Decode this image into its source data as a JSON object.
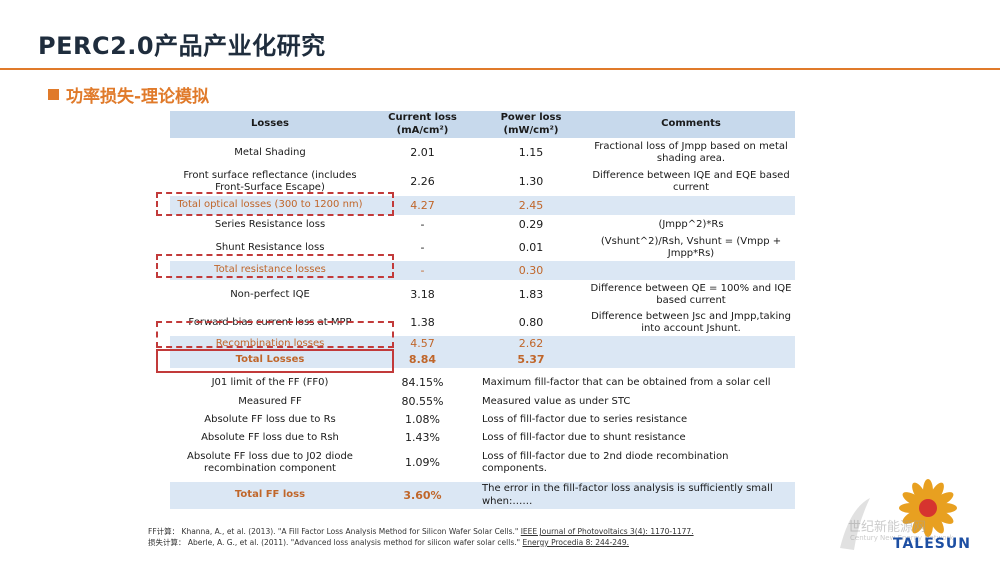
{
  "title": "PERC2.0产品产业化研究",
  "section": {
    "heading": "功率损失-理论模拟"
  },
  "loss_table": {
    "headers": {
      "losses": "Losses",
      "current": "Current loss (mA/cm²)",
      "power": "Power loss (mW/cm²)",
      "comments": "Comments"
    },
    "rows": [
      {
        "name": "Metal Shading",
        "current": "2.01",
        "power": "1.15",
        "comment": "Fractional loss of Jmpp based on metal shading area."
      },
      {
        "name": "Front surface reflectance (includes Front-Surface Escape)",
        "current": "2.26",
        "power": "1.30",
        "comment": "Difference between IQE and EQE based current"
      },
      {
        "name": "Total optical losses (300 to 1200 nm)",
        "current": "4.27",
        "power": "2.45",
        "comment": ""
      },
      {
        "name": "Series Resistance loss",
        "current": "-",
        "power": "0.29",
        "comment": "(Jmpp^2)*Rs"
      },
      {
        "name": "Shunt Resistance loss",
        "current": "-",
        "power": "0.01",
        "comment": "(Vshunt^2)/Rsh, Vshunt = (Vmpp + Jmpp*Rs)"
      },
      {
        "name": "Total resistance losses",
        "current": "-",
        "power": "0.30",
        "comment": ""
      },
      {
        "name": "Non-perfect IQE",
        "current": "3.18",
        "power": "1.83",
        "comment": "Difference between QE = 100% and IQE based current"
      },
      {
        "name": "Forward-bias current loss at MPP",
        "current": "1.38",
        "power": "0.80",
        "comment": "Difference between Jsc and Jmpp,taking into account Jshunt."
      },
      {
        "name": "Recombination losses",
        "current": "4.57",
        "power": "2.62",
        "comment": ""
      },
      {
        "name": "Total Losses",
        "current": "8.84",
        "power": "5.37",
        "comment": ""
      }
    ]
  },
  "ff_table": {
    "rows": [
      {
        "name": "J01 limit of the FF (FF0)",
        "value": "84.15%",
        "comment": "Maximum fill-factor that can be obtained from a solar cell"
      },
      {
        "name": "Measured FF",
        "value": "80.55%",
        "comment": "Measured value as under STC"
      },
      {
        "name": "Absolute FF loss due to Rs",
        "value": "1.08%",
        "comment": "Loss of fill-factor due to series resistance"
      },
      {
        "name": "Absolute FF loss due to Rsh",
        "value": "1.43%",
        "comment": "Loss of fill-factor due to shunt resistance"
      },
      {
        "name": "Absolute FF loss due to J02 diode recombination component",
        "value": "1.09%",
        "comment": "Loss of fill-factor due to 2nd diode recombination components."
      },
      {
        "name": "Total FF loss",
        "value": "3.60%",
        "comment": "The error in the fill-factor loss analysis is sufficiently small when:……"
      }
    ]
  },
  "references": {
    "ff_prefix": "FF计算：",
    "ff_text": "Khanna, A., et al. (2013). \"A Fill Factor Loss Analysis Method for Silicon Wafer Solar Cells.\"",
    "ff_journal": "IEEE Journal of Photovoltaics 3(4): 1170-1177.",
    "loss_prefix": "损失计算：",
    "loss_text": "Aberle, A. G., et al. (2011). \"Advanced loss analysis method for silicon wafer solar cells.\"",
    "loss_journal": "Energy Procedia 8: 244-249."
  },
  "logo": {
    "name": "TALESUN",
    "icon": "sunflower-logo-icon"
  },
  "watermark": {
    "cn": "世纪新能源网",
    "en": "Century New Energy Network"
  },
  "colors": {
    "accent": "#e07a2a",
    "table_header": "#c7d9ec",
    "table_shade": "#dbe7f4",
    "highlight_box": "#c23a3a",
    "logo_blue": "#1d4fa3"
  }
}
